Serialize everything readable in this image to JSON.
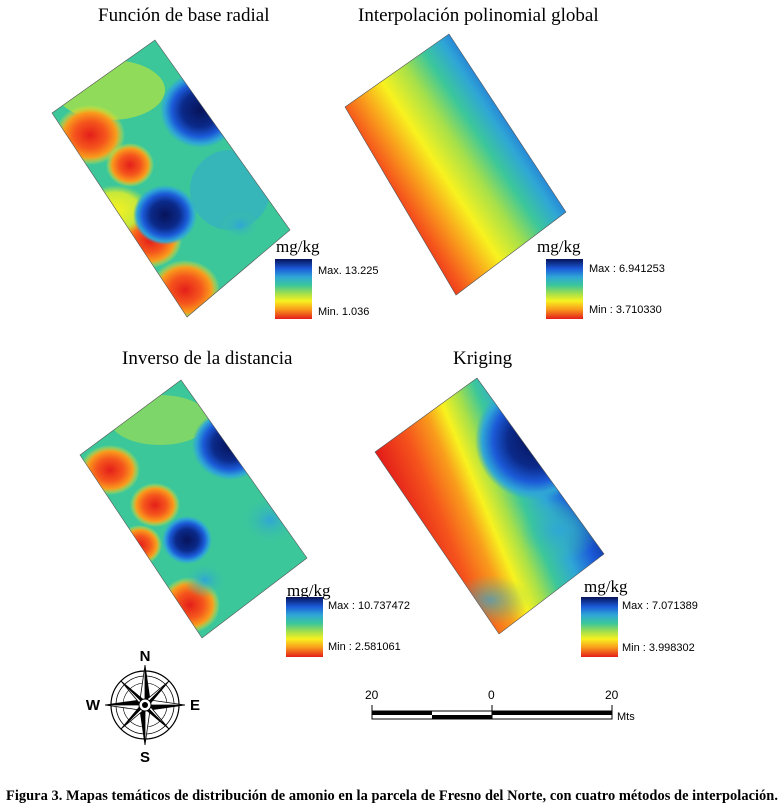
{
  "panels": [
    {
      "title": "Función de base radial",
      "unit": "mg/kg",
      "max_label": "Max. 13.225",
      "min_label": "Min. 1.036"
    },
    {
      "title": "Interpolación polinomial global",
      "unit": "mg/kg",
      "max_label": "Max : 6.941253",
      "min_label": "Min : 3.710330"
    },
    {
      "title": "Inverso de la distancia",
      "unit": "mg/kg",
      "max_label": "Max : 10.737472",
      "min_label": "Min : 2.581061"
    },
    {
      "title": "Kriging",
      "unit": "mg/kg",
      "max_label": "Max : 7.071389",
      "min_label": "Min : 3.998302"
    }
  ],
  "compass": {
    "n": "N",
    "s": "S",
    "e": "E",
    "w": "W"
  },
  "scale": {
    "left": "20",
    "mid": "0",
    "right": "20",
    "unit": "Mts"
  },
  "caption": "Figura 3. Mapas temáticos de distribución de amonio en la parcela de Fresno del Norte, con cuatro métodos de interpolación.",
  "colors": {
    "dark_blue": "#07135a",
    "blue": "#1b5ad8",
    "cyan": "#2fa6d6",
    "green": "#3cc79a",
    "yellow": "#f8f21f",
    "orange": "#f99b1c",
    "red": "#e41f1a"
  }
}
